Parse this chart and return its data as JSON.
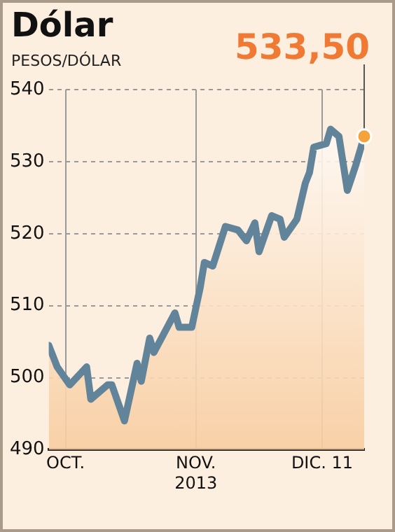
{
  "chart_data": {
    "type": "area",
    "title": "Dólar",
    "ylabel": "PESOS/DÓLAR",
    "x": [
      "2013-09-27",
      "2013-09-29",
      "2013-10-02",
      "2013-10-06",
      "2013-10-07",
      "2013-10-11",
      "2013-10-12",
      "2013-10-15",
      "2013-10-18",
      "2013-10-19",
      "2013-10-21",
      "2013-10-22",
      "2013-10-27",
      "2013-10-28",
      "2013-10-31",
      "2013-11-02",
      "2013-11-03",
      "2013-11-05",
      "2013-11-08",
      "2013-11-11",
      "2013-11-13",
      "2013-11-15",
      "2013-11-16",
      "2013-11-19",
      "2013-11-21",
      "2013-11-22",
      "2013-11-25",
      "2013-11-27",
      "2013-11-28",
      "2013-11-29",
      "2013-12-02",
      "2013-12-03",
      "2013-12-05",
      "2013-12-07",
      "2013-12-09",
      "2013-12-11"
    ],
    "series": [
      {
        "color": "#62849a",
        "values": [
          504.5,
          501.5,
          499,
          501.5,
          497,
          499,
          499,
          494,
          502,
          499.5,
          505.5,
          503.5,
          509,
          507,
          507,
          512.5,
          516,
          515.5,
          521,
          520.5,
          519,
          521.5,
          517.5,
          522.5,
          522,
          519.5,
          522,
          527,
          528.5,
          532,
          532.5,
          534.5,
          533.5,
          526,
          529.5,
          533.5
        ]
      }
    ],
    "xlim": [
      "2013-09-27",
      "2013-12-11"
    ],
    "xticks": [
      {
        "value": "2013-10-01",
        "label": "OCT."
      },
      {
        "value": "2013-11-01",
        "label": "NOV.\n2013"
      },
      {
        "value": "2013-12-01",
        "label": "DIC. 11"
      }
    ],
    "ylim": [
      490,
      540
    ],
    "yticks": [
      490,
      500,
      510,
      520,
      530,
      540
    ],
    "grid": true,
    "legend": false,
    "marker": "none",
    "line_style": "solid",
    "annotations": [
      {
        "text": "533,50",
        "x": "2013-12-11",
        "y": 533.5
      }
    ]
  }
}
